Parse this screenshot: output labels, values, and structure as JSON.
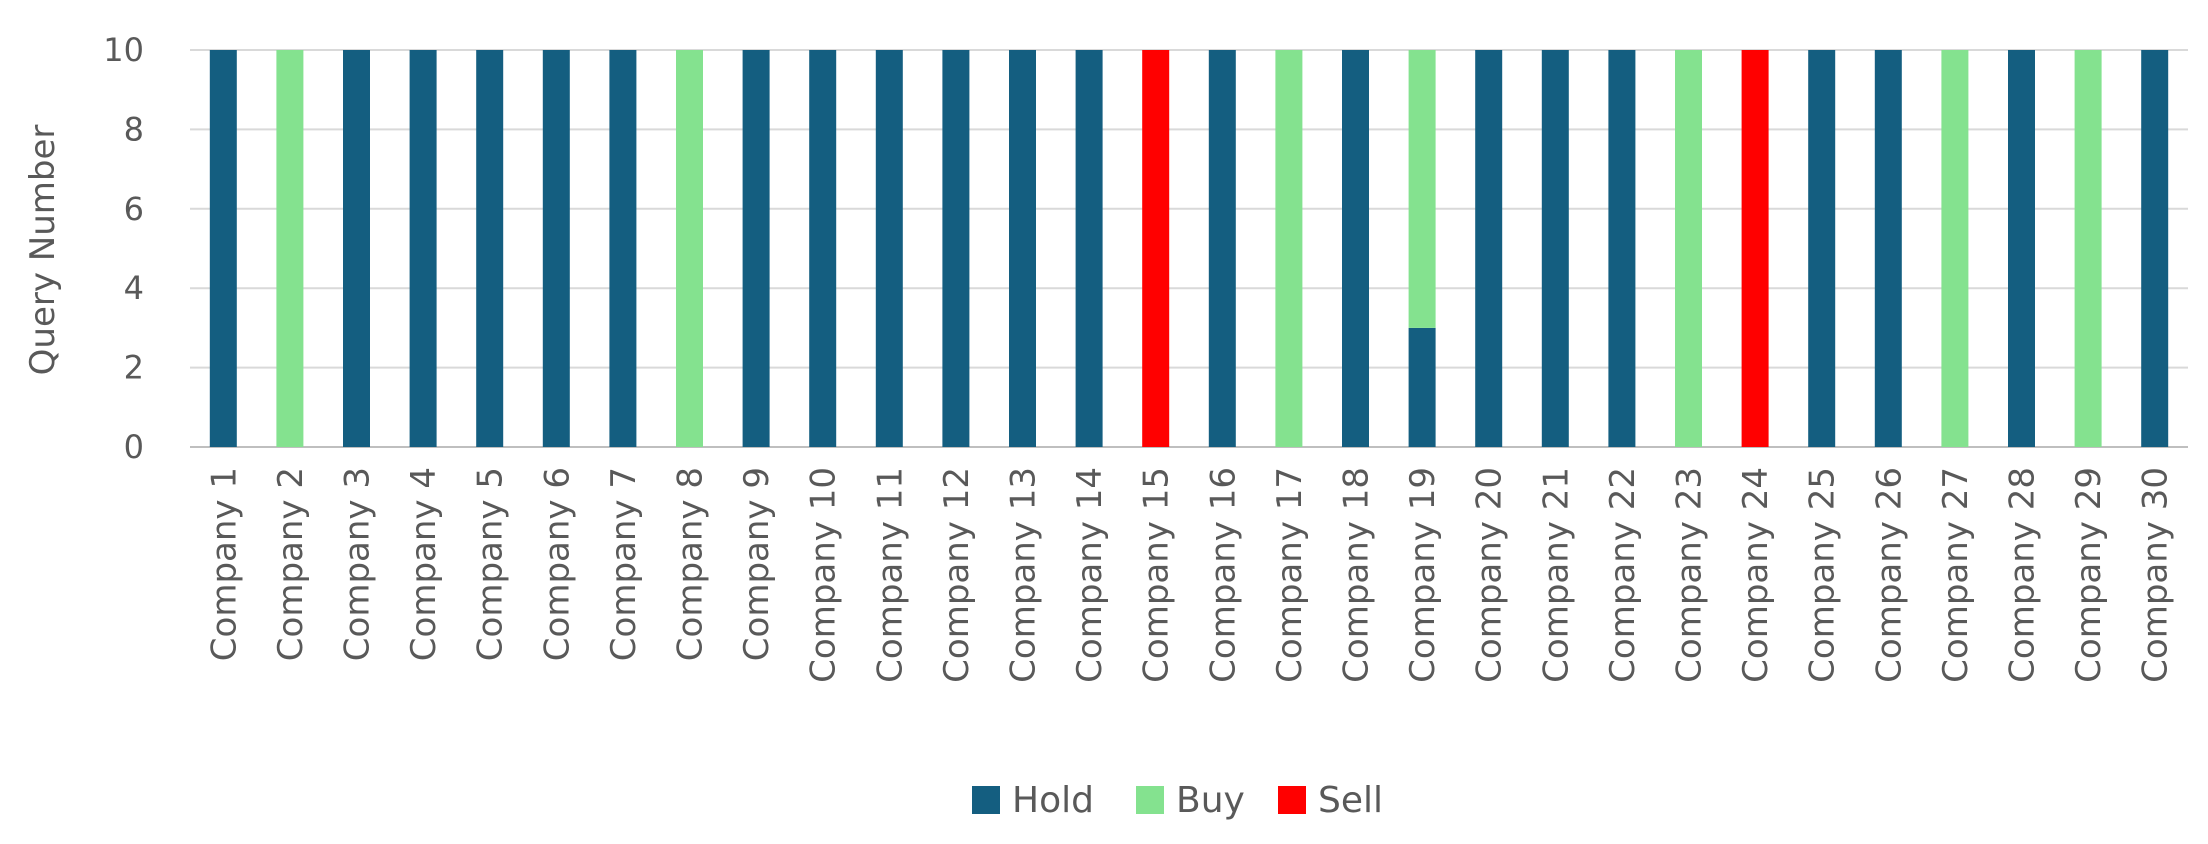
{
  "chart_data": {
    "type": "bar",
    "stacked": true,
    "categories": [
      "Company 1",
      "Company 2",
      "Company 3",
      "Company 4",
      "Company 5",
      "Company 6",
      "Company 7",
      "Company 8",
      "Company 9",
      "Company 10",
      "Company 11",
      "Company 12",
      "Company 13",
      "Company 14",
      "Company 15",
      "Company 16",
      "Company 17",
      "Company 18",
      "Company 19",
      "Company 20",
      "Company 21",
      "Company 22",
      "Company 23",
      "Company 24",
      "Company 25",
      "Company 26",
      "Company 27",
      "Company 28",
      "Company 29",
      "Company 30"
    ],
    "series": [
      {
        "name": "Hold",
        "color": "#145E80",
        "values": [
          10,
          0,
          10,
          10,
          10,
          10,
          10,
          0,
          10,
          10,
          10,
          10,
          10,
          10,
          0,
          10,
          0,
          10,
          3,
          10,
          10,
          10,
          0,
          0,
          10,
          10,
          0,
          10,
          0,
          10
        ]
      },
      {
        "name": "Buy",
        "color": "#84E28F",
        "values": [
          0,
          10,
          0,
          0,
          0,
          0,
          0,
          10,
          0,
          0,
          0,
          0,
          0,
          0,
          0,
          0,
          10,
          0,
          7,
          0,
          0,
          0,
          10,
          0,
          0,
          0,
          10,
          0,
          10,
          0
        ]
      },
      {
        "name": "Sell",
        "color": "#FF0000",
        "values": [
          0,
          0,
          0,
          0,
          0,
          0,
          0,
          0,
          0,
          0,
          0,
          0,
          0,
          0,
          10,
          0,
          0,
          0,
          0,
          0,
          0,
          0,
          0,
          10,
          0,
          0,
          0,
          0,
          0,
          0
        ]
      }
    ],
    "ylabel": "Query Number",
    "xlabel": "",
    "ylim": [
      0,
      10
    ],
    "yticks": [
      "0",
      "2",
      "4",
      "6",
      "8",
      "10"
    ],
    "grid": true,
    "legend": "bottom"
  }
}
